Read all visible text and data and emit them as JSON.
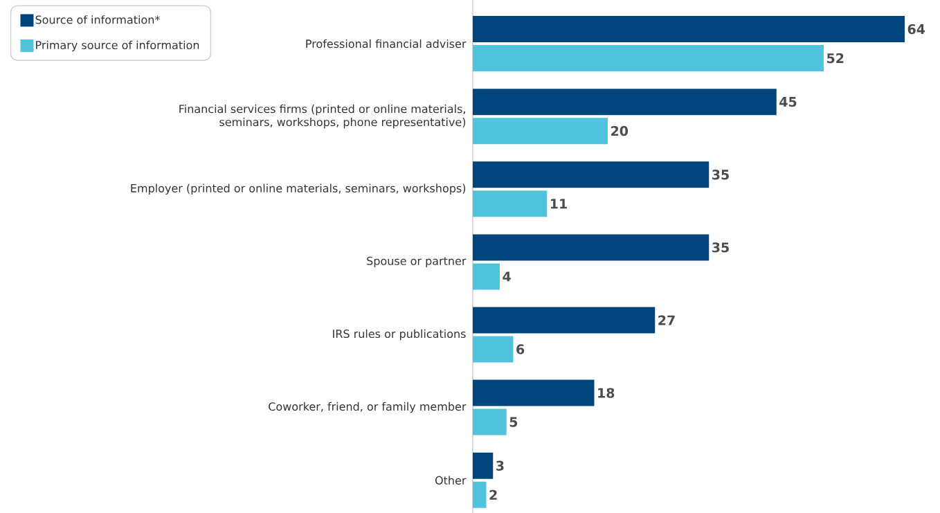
{
  "chart_data": {
    "type": "bar",
    "orientation": "horizontal",
    "categories": [
      "Professional financial adviser",
      "Financial services firms (printed or online materials, seminars, workshops, phone representative)",
      "Employer (printed or online materials, seminars, workshops)",
      "Spouse or partner",
      "IRS rules or publications",
      "Coworker, friend, or family member",
      "Other"
    ],
    "series": [
      {
        "name": "Source of information*",
        "color": "#00447c",
        "values": [
          64,
          45,
          35,
          35,
          27,
          18,
          3
        ]
      },
      {
        "name": "Primary source of information",
        "color": "#52c3dd",
        "values": [
          52,
          20,
          11,
          4,
          6,
          5,
          2
        ]
      }
    ],
    "data_labels": true,
    "legend": "top left"
  }
}
